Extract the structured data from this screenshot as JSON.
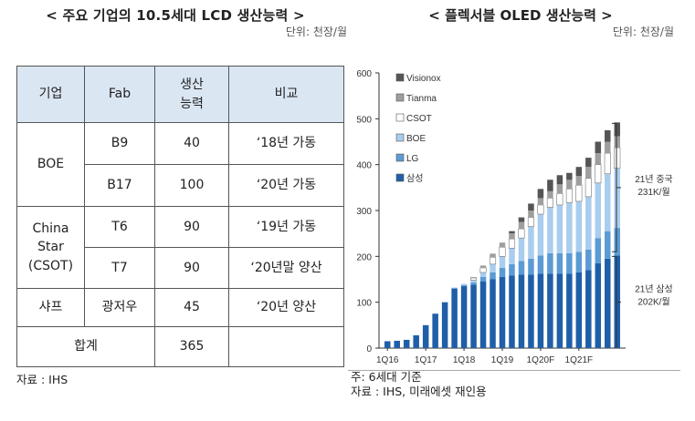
{
  "left": {
    "title": "< 주요 기업의 10.5세대 LCD 생산능력 >",
    "unit": "단위: 천장/월",
    "headers": [
      "기업",
      "Fab",
      "생산\n능력",
      "비교"
    ],
    "rows": [
      {
        "company": "BOE",
        "fab": "B9",
        "capacity": "40",
        "note": "‘18년 가동"
      },
      {
        "company": "",
        "fab": "B17",
        "capacity": "100",
        "note": "‘20년 가동"
      },
      {
        "company": "China\nStar\n(CSOT)",
        "fab": "T6",
        "capacity": "90",
        "note": "‘19년 가동"
      },
      {
        "company": "",
        "fab": "T7",
        "capacity": "90",
        "note": "‘20년말 양산"
      },
      {
        "company": "샤프",
        "fab": "광저우",
        "capacity": "45",
        "note": "‘20년 양산"
      }
    ],
    "total_label": "합계",
    "total_value": "365",
    "source": "자료 : IHS"
  },
  "right": {
    "title": "< 플렉서블 OLED 생산능력 >",
    "unit": "단위: 천장/월",
    "note": "주: 6세대 기준",
    "source": "자료 : IHS, 미래에셋 재인용",
    "annotations": [
      {
        "line1": "21년 중국",
        "line2": "231K/월"
      },
      {
        "line1": "21년 삼성",
        "line2": "202K/월"
      }
    ]
  },
  "colors": {
    "삼성": "#1f5fa8",
    "LG": "#5b9bd5",
    "BOE": "#a9cdee",
    "CSOT": "#ffffff",
    "Tianma": "#9e9e9e",
    "Visionox": "#555555",
    "header_bg": "#dbe6f3"
  },
  "chart_data": {
    "type": "bar",
    "stacked": true,
    "ylim": [
      0,
      600
    ],
    "yticks": [
      0,
      100,
      200,
      300,
      400,
      500,
      600
    ],
    "x_tick_labels": [
      "1Q16",
      "1Q17",
      "1Q18",
      "1Q19",
      "1Q20F",
      "1Q21F"
    ],
    "x_tick_index": [
      0,
      4,
      8,
      12,
      16,
      20
    ],
    "legend": [
      "Visionox",
      "Tianma",
      "CSOT",
      "BOE",
      "LG",
      "삼성"
    ],
    "legend_position": "top-left",
    "series": [
      {
        "name": "삼성",
        "values": [
          15,
          16,
          18,
          28,
          50,
          75,
          100,
          130,
          135,
          138,
          145,
          150,
          155,
          158,
          160,
          160,
          162,
          162,
          162,
          162,
          165,
          170,
          185,
          195,
          202
        ]
      },
      {
        "name": "LG",
        "values": [
          0,
          0,
          0,
          0,
          0,
          0,
          0,
          0,
          2,
          5,
          10,
          15,
          20,
          25,
          30,
          35,
          40,
          45,
          45,
          45,
          45,
          45,
          55,
          60,
          60
        ]
      },
      {
        "name": "BOE",
        "values": [
          0,
          0,
          0,
          0,
          0,
          0,
          0,
          2,
          3,
          5,
          10,
          18,
          25,
          35,
          50,
          70,
          90,
          100,
          105,
          110,
          110,
          115,
          120,
          125,
          130
        ]
      },
      {
        "name": "CSOT",
        "values": [
          0,
          0,
          0,
          0,
          0,
          0,
          0,
          0,
          0,
          5,
          10,
          15,
          20,
          20,
          20,
          20,
          20,
          20,
          25,
          30,
          35,
          40,
          40,
          45,
          45
        ]
      },
      {
        "name": "Tianma",
        "values": [
          0,
          0,
          0,
          0,
          0,
          0,
          0,
          0,
          0,
          2,
          5,
          8,
          10,
          12,
          15,
          15,
          15,
          15,
          20,
          20,
          20,
          25,
          25,
          25,
          25
        ]
      },
      {
        "name": "Visionox",
        "values": [
          0,
          0,
          0,
          0,
          0,
          0,
          0,
          0,
          0,
          0,
          0,
          0,
          0,
          5,
          10,
          15,
          20,
          25,
          20,
          15,
          20,
          20,
          25,
          25,
          30
        ]
      }
    ]
  }
}
